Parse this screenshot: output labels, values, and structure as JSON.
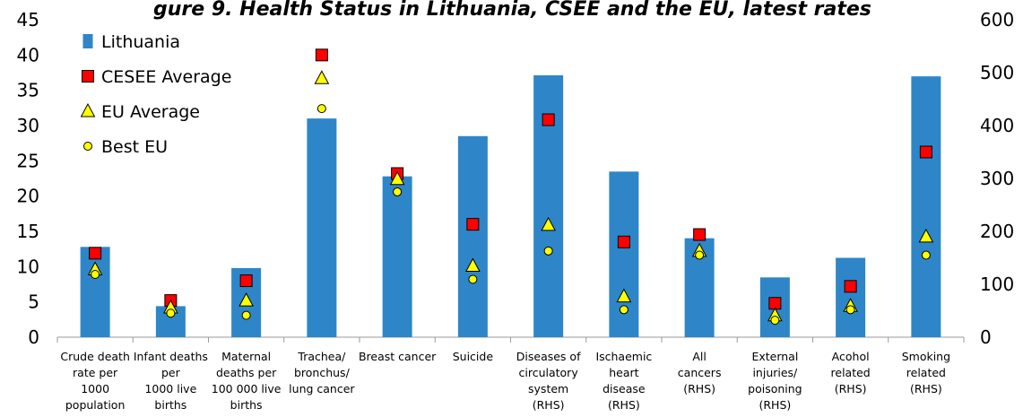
{
  "chart_data": {
    "type": "bar",
    "title": "gure 9. Health Status in Lithuania, CSEE and the EU, latest rates",
    "categories": [
      "Crude death rate per 1000 population",
      "Infant deaths per 1000 live births",
      "Maternal deaths per 100 000 live births",
      "Trachea/ bronchus/ lung cancer",
      "Breast cancer",
      "Suicide",
      "Diseases of circulatory system (RHS)",
      "Ischaemic heart disease (RHS)",
      "All cancers (RHS)",
      "External injuries/ poisoning (RHS)",
      "Acohol related (RHS)",
      "Smoking related (RHS)"
    ],
    "category_lines": [
      [
        "Crude death",
        "rate per",
        "1000",
        "population"
      ],
      [
        "Infant deaths",
        "per",
        "1000 live",
        "births"
      ],
      [
        "Maternal",
        "deaths per",
        "100 000 live",
        "births"
      ],
      [
        "Trachea/",
        "bronchus/",
        "lung cancer"
      ],
      [
        "Breast cancer"
      ],
      [
        "Suicide"
      ],
      [
        "Diseases of",
        "circulatory",
        "system",
        "(RHS)"
      ],
      [
        "Ischaemic",
        "heart",
        "disease",
        "(RHS)"
      ],
      [
        "All",
        "cancers",
        "(RHS)"
      ],
      [
        "External",
        "injuries/",
        "poisoning",
        "(RHS)"
      ],
      [
        "Acohol",
        "related",
        "(RHS)"
      ],
      [
        "Smoking",
        "related",
        "(RHS)"
      ]
    ],
    "axis": [
      "left",
      "left",
      "left",
      "left",
      "left",
      "left",
      "right",
      "right",
      "right",
      "right",
      "right",
      "right"
    ],
    "series": [
      {
        "name": "Lithuania",
        "marker": "bar",
        "color": "#2e86c8",
        "values": [
          12.8,
          4.4,
          9.8,
          31.0,
          22.8,
          28.5,
          495,
          313,
          187,
          113,
          150,
          493
        ]
      },
      {
        "name": "CESEE Average",
        "marker": "square",
        "color": "#ff0000",
        "values": [
          11.9,
          5.2,
          8.0,
          40.0,
          23.2,
          16.0,
          411,
          180,
          194,
          64,
          96,
          350
        ]
      },
      {
        "name": "EU Average",
        "marker": "triangle",
        "color": "#ffff00",
        "values": [
          9.6,
          4.2,
          5.2,
          36.7,
          22.4,
          10.1,
          212,
          77,
          163,
          41,
          59,
          190
        ]
      },
      {
        "name": "Best EU",
        "marker": "circle",
        "color": "#ffff00",
        "values": [
          8.9,
          3.4,
          3.1,
          32.4,
          20.6,
          8.2,
          163,
          52,
          155,
          32,
          52,
          155
        ]
      }
    ],
    "y_left": {
      "min": 0,
      "max": 45,
      "ticks": [
        0,
        5,
        10,
        15,
        20,
        25,
        30,
        35,
        40,
        45
      ]
    },
    "y_right": {
      "min": 0,
      "max": 600,
      "ticks": [
        0,
        100,
        200,
        300,
        400,
        500,
        600
      ]
    },
    "legend": "top-left",
    "grid": false
  }
}
